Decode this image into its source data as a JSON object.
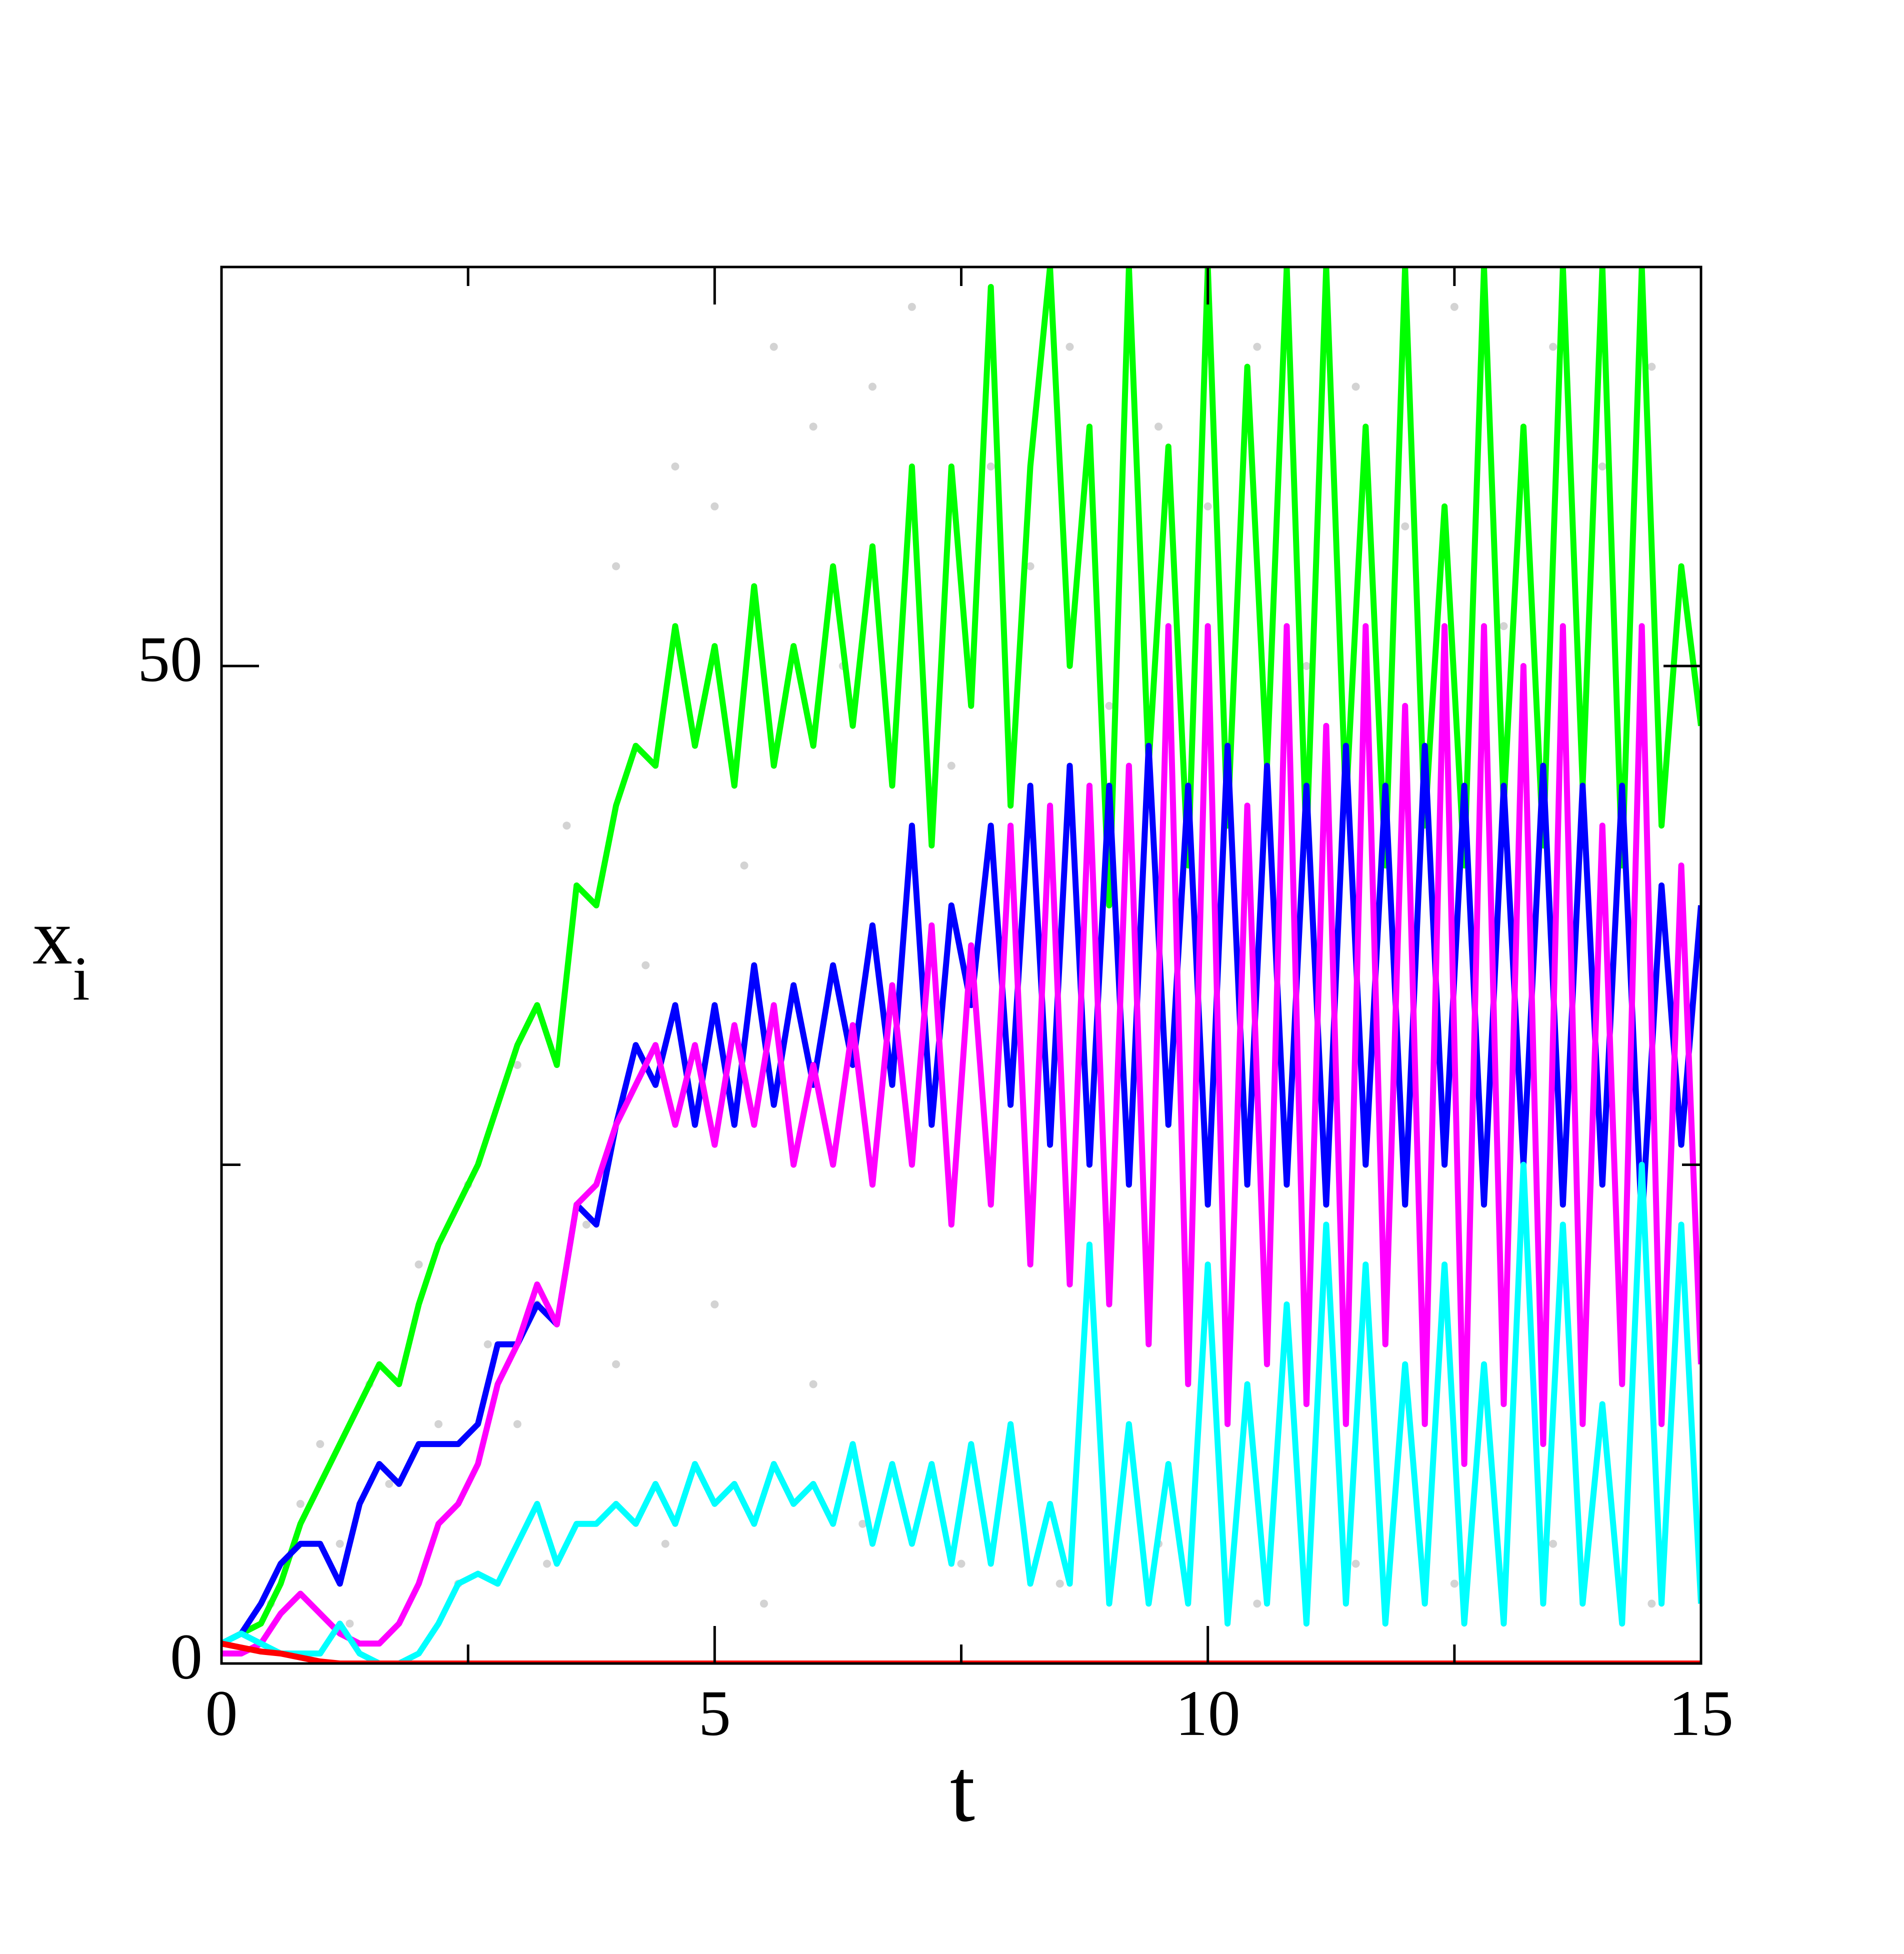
{
  "chart_data": {
    "type": "line",
    "xlabel": "t",
    "ylabel": {
      "text": "x",
      "subscript": "i"
    },
    "xlim": [
      0,
      15
    ],
    "ylim": [
      0,
      70
    ],
    "xticks": [
      0,
      5,
      10,
      15
    ],
    "yticks": [
      0,
      50
    ],
    "x_minor_ticks": [
      2.5,
      7.5,
      12.5
    ],
    "y_minor_ticks": [
      25
    ],
    "x": [
      0,
      0.2,
      0.4,
      0.6,
      0.8,
      1,
      1.2,
      1.4,
      1.6,
      1.8,
      2,
      2.2,
      2.4,
      2.6,
      2.8,
      3,
      3.2,
      3.4,
      3.6,
      3.8,
      4,
      4.2,
      4.4,
      4.6,
      4.8,
      5,
      5.2,
      5.4,
      5.6,
      5.8,
      6,
      6.2,
      6.4,
      6.6,
      6.8,
      7,
      7.2,
      7.4,
      7.6,
      7.8,
      8,
      8.2,
      8.4,
      8.6,
      8.8,
      9,
      9.2,
      9.4,
      9.6,
      9.8,
      10,
      10.2,
      10.4,
      10.6,
      10.8,
      11,
      11.2,
      11.4,
      11.6,
      11.8,
      12,
      12.2,
      12.4,
      12.6,
      12.8,
      13,
      13.2,
      13.4,
      13.6,
      13.8,
      14,
      14.2,
      14.4,
      14.6,
      14.8,
      15
    ],
    "background": {
      "color": "#d3d3d3",
      "x": [
        0.5,
        0.8,
        1.0,
        1.2,
        1.5,
        1.7,
        2.0,
        2.2,
        2.5,
        2.7,
        3.0,
        3.2,
        3.5,
        3.7,
        4.0,
        4.3,
        4.6,
        5.0,
        5.3,
        5.6,
        6.0,
        6.3,
        6.6,
        7.0,
        7.4,
        7.8,
        8.2,
        8.6,
        9.0,
        9.5,
        10.0,
        10.5,
        11.0,
        11.5,
        12.0,
        12.5,
        13.0,
        13.5,
        14.0,
        14.5,
        1.3,
        2.4,
        3.3,
        4.5,
        5.5,
        6.5,
        7.5,
        8.5,
        9.5,
        10.5,
        11.5,
        12.5,
        13.5,
        14.5,
        3.0,
        4.0,
        5.0,
        6.0
      ],
      "y": [
        3,
        8,
        11,
        6,
        14,
        9,
        20,
        12,
        24,
        16,
        30,
        18,
        42,
        22,
        55,
        35,
        60,
        58,
        40,
        66,
        62,
        50,
        64,
        68,
        45,
        60,
        55,
        66,
        48,
        62,
        58,
        66,
        50,
        64,
        57,
        68,
        52,
        66,
        60,
        65,
        2,
        4,
        5,
        6,
        3,
        7,
        5,
        4,
        6,
        3,
        5,
        4,
        6,
        3,
        12,
        15,
        18,
        14
      ]
    },
    "series": [
      {
        "name": "green",
        "color": "#00ff00",
        "values": [
          1,
          1.5,
          2,
          4,
          7,
          9,
          11,
          13,
          15,
          14,
          18,
          21,
          23,
          25,
          28,
          31,
          33,
          30,
          39,
          38,
          43,
          46,
          45,
          52,
          46,
          51,
          44,
          54,
          45,
          51,
          46,
          55,
          47,
          56,
          44,
          60,
          41,
          60,
          48,
          69,
          43,
          60,
          70,
          50,
          62,
          38,
          70,
          45,
          61,
          40,
          70,
          42,
          65,
          45,
          70,
          41,
          70,
          43,
          62,
          40,
          70,
          42,
          58,
          40,
          70,
          43,
          62,
          41,
          70,
          44,
          70,
          40,
          70,
          42,
          55,
          47
        ]
      },
      {
        "name": "blue",
        "color": "#0000ff",
        "values": [
          1,
          1.5,
          3,
          5,
          6,
          6,
          4,
          8,
          10,
          9,
          11,
          11,
          11,
          12,
          16,
          16,
          18,
          17,
          23,
          22,
          27,
          31,
          29,
          33,
          27,
          33,
          27,
          35,
          28,
          34,
          29,
          35,
          30,
          37,
          29,
          42,
          27,
          38,
          33,
          42,
          28,
          44,
          26,
          45,
          25,
          44,
          24,
          46,
          27,
          44,
          23,
          46,
          24,
          45,
          24,
          44,
          23,
          46,
          25,
          44,
          23,
          46,
          25,
          44,
          23,
          44,
          25,
          45,
          23,
          44,
          24,
          44,
          22,
          39,
          26,
          38
        ]
      },
      {
        "name": "magenta",
        "color": "#ff00ff",
        "values": [
          0.5,
          0.5,
          1,
          2.5,
          3.5,
          2.5,
          1.5,
          1,
          1,
          2,
          4,
          7,
          8,
          10,
          14,
          16,
          19,
          17,
          23,
          24,
          27,
          29,
          31,
          27,
          31,
          26,
          32,
          27,
          33,
          25,
          30,
          25,
          32,
          24,
          34,
          25,
          37,
          22,
          36,
          23,
          42,
          20,
          43,
          19,
          44,
          18,
          45,
          16,
          52,
          14,
          52,
          12,
          43,
          15,
          52,
          13,
          47,
          12,
          52,
          16,
          48,
          12,
          52,
          10,
          52,
          13,
          50,
          11,
          52,
          12,
          42,
          14,
          52,
          12,
          40,
          15
        ]
      },
      {
        "name": "cyan",
        "color": "#00ffff",
        "values": [
          1,
          1.5,
          1,
          0.5,
          0.5,
          0.5,
          2,
          0.5,
          0,
          0,
          0.5,
          2,
          4,
          4.5,
          4,
          6,
          8,
          5,
          7,
          7,
          8,
          7,
          9,
          7,
          10,
          8,
          9,
          7,
          10,
          8,
          9,
          7,
          11,
          6,
          10,
          6,
          10,
          5,
          11,
          5,
          12,
          4,
          8,
          4,
          21,
          3,
          12,
          3,
          10,
          3,
          20,
          2,
          14,
          3,
          18,
          2,
          22,
          3,
          20,
          2,
          15,
          3,
          20,
          2,
          15,
          2,
          25,
          3,
          22,
          3,
          13,
          2,
          25,
          3,
          22,
          3
        ]
      },
      {
        "name": "red",
        "color": "#ff0000",
        "values": [
          1,
          0.8,
          0.6,
          0.5,
          0.3,
          0.1,
          0,
          0,
          0,
          0,
          0,
          0,
          0,
          0,
          0,
          0,
          0,
          0,
          0,
          0,
          0,
          0,
          0,
          0,
          0,
          0,
          0,
          0,
          0,
          0,
          0,
          0,
          0,
          0,
          0,
          0,
          0,
          0,
          0,
          0,
          0,
          0,
          0,
          0,
          0,
          0,
          0,
          0,
          0,
          0,
          0,
          0,
          0,
          0,
          0,
          0,
          0,
          0,
          0,
          0,
          0,
          0,
          0,
          0,
          0,
          0,
          0,
          0,
          0,
          0,
          0,
          0,
          0,
          0,
          0,
          0
        ]
      }
    ]
  }
}
